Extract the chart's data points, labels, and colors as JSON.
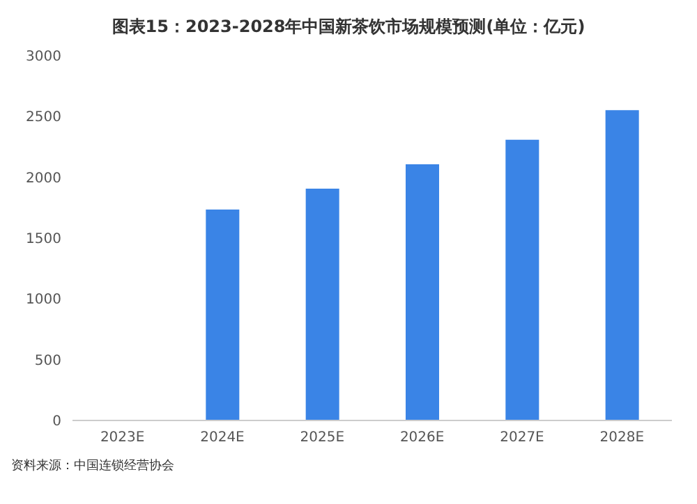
{
  "chart_data": {
    "type": "bar",
    "title": "图表15：2023-2028年中国新茶饮市场规模预测(单位：亿元)",
    "categories": [
      "2023E",
      "2024E",
      "2025E",
      "2026E",
      "2027E",
      "2028E"
    ],
    "values": [
      null,
      1735,
      1907,
      2107,
      2309,
      2552
    ],
    "color": "#3a84e6",
    "ylim": [
      0,
      3000
    ],
    "yticks": [
      0,
      500,
      1000,
      1500,
      2000,
      2500,
      3000
    ],
    "grid": false,
    "legend": false,
    "annotations": [
      "资料来源：中国连锁经营协会"
    ]
  }
}
